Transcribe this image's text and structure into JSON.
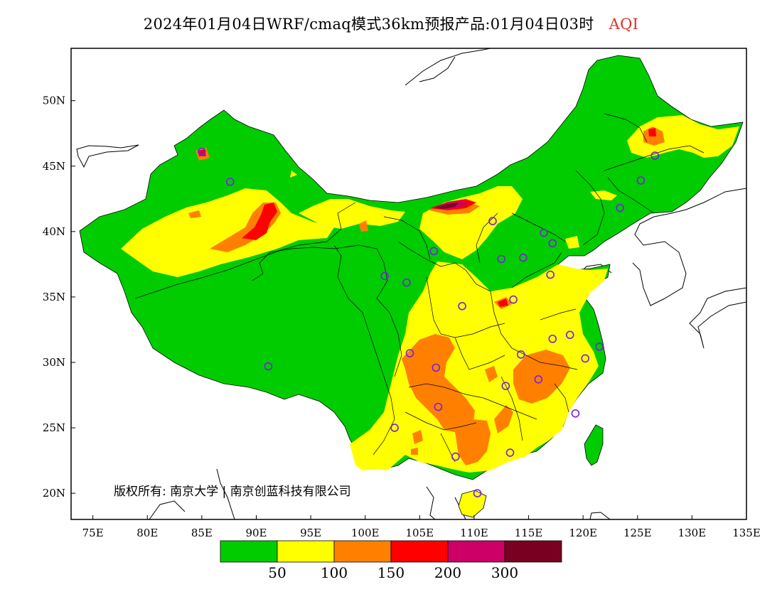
{
  "title": {
    "main": "2024年01月04日WRF/cmaq模式36km预报产品:01月04日03时",
    "variable": "AQI"
  },
  "map": {
    "lon_range": [
      73,
      135
    ],
    "lat_range": [
      18,
      54
    ],
    "x_ticks": [
      "75E",
      "80E",
      "85E",
      "90E",
      "95E",
      "100E",
      "105E",
      "110E",
      "115E",
      "120E",
      "125E",
      "130E",
      "135E"
    ],
    "y_ticks": [
      "50N",
      "45N",
      "40N",
      "35N",
      "30N",
      "25N",
      "20N"
    ],
    "copyright": "版权所有: 南京大学 | 南京创蓝科技有限公司"
  },
  "legend": {
    "thresholds": [
      "50",
      "100",
      "150",
      "200",
      "300"
    ],
    "colors": [
      "#00cc00",
      "#ffff00",
      "#ff8000",
      "#ff0000",
      "#cc0066",
      "#7a0022"
    ]
  },
  "stations": [
    {
      "lon": 87.6,
      "lat": 43.8
    },
    {
      "lon": 91.1,
      "lat": 29.7
    },
    {
      "lon": 101.8,
      "lat": 36.6
    },
    {
      "lon": 103.8,
      "lat": 36.1
    },
    {
      "lon": 106.3,
      "lat": 38.5
    },
    {
      "lon": 111.7,
      "lat": 40.8
    },
    {
      "lon": 112.5,
      "lat": 37.9
    },
    {
      "lon": 114.5,
      "lat": 38.0
    },
    {
      "lon": 116.4,
      "lat": 39.9
    },
    {
      "lon": 117.2,
      "lat": 39.1
    },
    {
      "lon": 117.0,
      "lat": 36.7
    },
    {
      "lon": 113.6,
      "lat": 34.8
    },
    {
      "lon": 108.9,
      "lat": 34.3
    },
    {
      "lon": 104.1,
      "lat": 30.7
    },
    {
      "lon": 106.5,
      "lat": 29.6
    },
    {
      "lon": 106.7,
      "lat": 26.6
    },
    {
      "lon": 102.7,
      "lat": 25.0
    },
    {
      "lon": 108.3,
      "lat": 22.8
    },
    {
      "lon": 113.3,
      "lat": 23.1
    },
    {
      "lon": 112.9,
      "lat": 28.2
    },
    {
      "lon": 114.3,
      "lat": 30.6
    },
    {
      "lon": 115.9,
      "lat": 28.7
    },
    {
      "lon": 117.2,
      "lat": 31.8
    },
    {
      "lon": 118.8,
      "lat": 32.1
    },
    {
      "lon": 120.2,
      "lat": 30.3
    },
    {
      "lon": 121.5,
      "lat": 31.2
    },
    {
      "lon": 119.3,
      "lat": 26.1
    },
    {
      "lon": 110.3,
      "lat": 20.0
    },
    {
      "lon": 123.4,
      "lat": 41.8
    },
    {
      "lon": 125.3,
      "lat": 43.9
    },
    {
      "lon": 126.6,
      "lat": 45.8
    },
    {
      "lon": 85.0,
      "lat": 46.1
    }
  ]
}
